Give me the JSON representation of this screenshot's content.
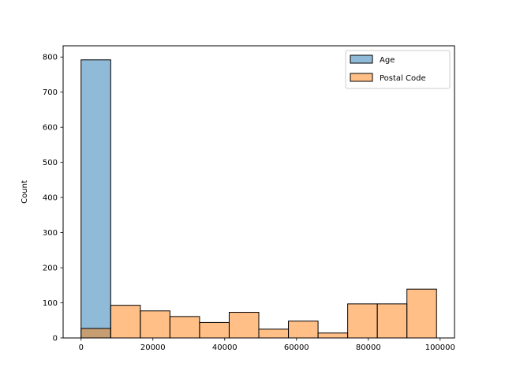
{
  "chart_data": {
    "type": "bar",
    "ylabel": "Count",
    "xlabel": "",
    "xlim": [
      -5000,
      104000
    ],
    "ylim": [
      0,
      832
    ],
    "x_ticks": [
      0,
      20000,
      40000,
      60000,
      80000,
      100000
    ],
    "x_tick_labels": [
      "0",
      "20000",
      "40000",
      "60000",
      "80000",
      "100000"
    ],
    "y_ticks": [
      0,
      100,
      200,
      300,
      400,
      500,
      600,
      700,
      800
    ],
    "y_tick_labels": [
      "0",
      "100",
      "200",
      "300",
      "400",
      "500",
      "600",
      "700",
      "800"
    ],
    "bin_edges": [
      0,
      8250,
      16500,
      24750,
      33000,
      41250,
      49500,
      57750,
      66000,
      74250,
      82500,
      90750,
      99000
    ],
    "series": [
      {
        "name": "Age",
        "color": "#1f77b4",
        "values": [
          792,
          0,
          0,
          0,
          0,
          0,
          0,
          0,
          0,
          0,
          0,
          0
        ]
      },
      {
        "name": "Postal Code",
        "color": "#ff7f0e",
        "values": [
          27,
          93,
          77,
          61,
          44,
          73,
          25,
          48,
          14,
          97,
          97,
          139
        ]
      }
    ],
    "legend_position": "top-right"
  }
}
